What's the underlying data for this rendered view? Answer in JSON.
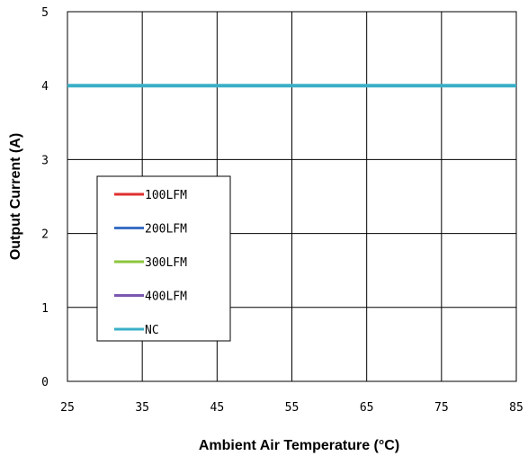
{
  "chart_data": {
    "type": "line",
    "xlabel": "Ambient Air Temperature (°C)",
    "ylabel": "Output Current (A)",
    "xlim": [
      25,
      85
    ],
    "ylim": [
      0,
      5
    ],
    "xticks": [
      "25",
      "35",
      "45",
      "55",
      "65",
      "75",
      "85"
    ],
    "yticks": [
      "0",
      "1",
      "2",
      "3",
      "4",
      "5"
    ],
    "grid": true,
    "legend_position": "lower-left",
    "series": [
      {
        "name": "100LFM",
        "color": "#e03030",
        "x": [],
        "y": []
      },
      {
        "name": "200LFM",
        "color": "#3a6fc4",
        "x": [],
        "y": []
      },
      {
        "name": "300LFM",
        "color": "#8dc63f",
        "x": [],
        "y": []
      },
      {
        "name": "400LFM",
        "color": "#7b57b0",
        "x": [],
        "y": []
      },
      {
        "name": "NC",
        "color": "#3aafc7",
        "x": [
          25,
          85
        ],
        "y": [
          4,
          4
        ]
      }
    ]
  }
}
